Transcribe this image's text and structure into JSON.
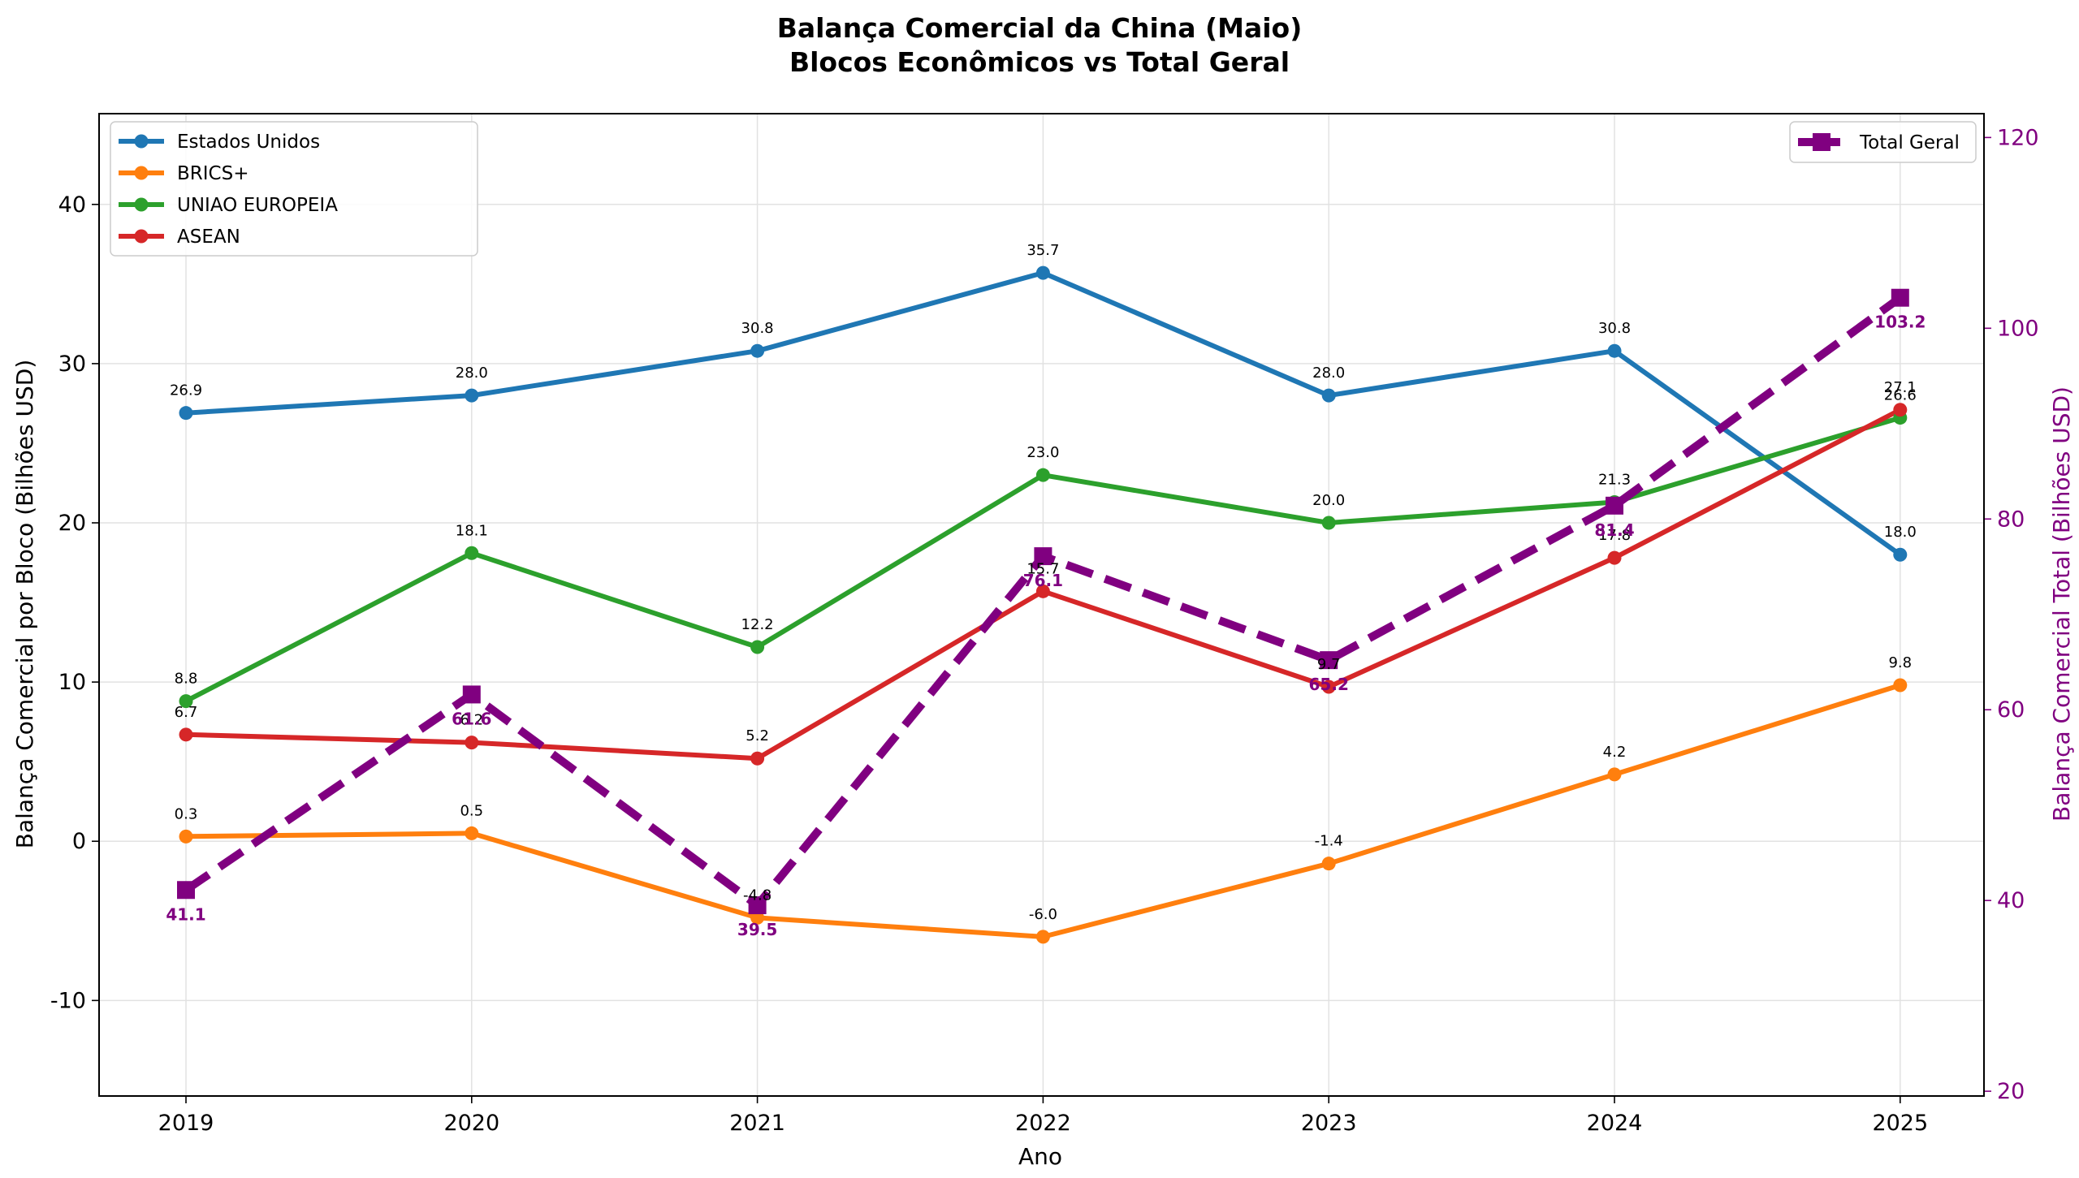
{
  "chart_data": {
    "type": "line",
    "title": "Balança Comercial da China (Maio)",
    "subtitle": "Blocos Econômicos vs Total Geral",
    "xlabel": "Ano",
    "ylabel": "Balança Comercial por Bloco (Bilhões USD)",
    "ylabel_right": "Balança Comercial Total (Bilhões USD)",
    "x": [
      "2019",
      "2020",
      "2021",
      "2022",
      "2023",
      "2024",
      "2025"
    ],
    "ylim": [
      -16,
      45.7
    ],
    "yticks": [
      -10,
      0,
      10,
      20,
      30,
      40
    ],
    "ylim_right": [
      19.5,
      122.5
    ],
    "yticks_right": [
      20,
      40,
      60,
      80,
      100,
      120
    ],
    "grid": true,
    "legend_left": "upper left",
    "legend_right": "upper right",
    "series": [
      {
        "name": "Estados Unidos",
        "color": "#1f77b4",
        "axis": "left",
        "values": [
          26.9,
          28.0,
          30.8,
          35.7,
          28.0,
          30.8,
          18.0
        ],
        "labels": [
          "26.9",
          "28.0",
          "30.8",
          "35.7",
          "28.0",
          "30.8",
          "18.0"
        ]
      },
      {
        "name": "BRICS+",
        "color": "#ff7f0e",
        "axis": "left",
        "values": [
          0.3,
          0.5,
          -4.8,
          -6.0,
          -1.4,
          4.2,
          9.8
        ],
        "labels": [
          "0.3",
          "0.5",
          "-4.8",
          "-6.0",
          "-1.4",
          "4.2",
          "9.8"
        ]
      },
      {
        "name": "UNIAO EUROPEIA",
        "color": "#2ca02c",
        "axis": "left",
        "values": [
          8.8,
          18.1,
          12.2,
          23.0,
          20.0,
          21.3,
          26.6
        ],
        "labels": [
          "8.8",
          "18.1",
          "12.2",
          "23.0",
          "20.0",
          "21.3",
          "26.6"
        ]
      },
      {
        "name": "ASEAN",
        "color": "#d62728",
        "axis": "left",
        "values": [
          6.7,
          6.2,
          5.2,
          15.7,
          9.7,
          17.8,
          27.1
        ],
        "labels": [
          "6.7",
          "6.2",
          "5.2",
          "15.7",
          "9.7",
          "17.8",
          "27.1"
        ]
      },
      {
        "name": "Total Geral",
        "color": "#800080",
        "axis": "right",
        "values": [
          41.1,
          61.6,
          39.5,
          76.1,
          65.2,
          81.4,
          103.2
        ],
        "labels": [
          "41.1",
          "61.6",
          "39.5",
          "76.1",
          "65.2",
          "81.4",
          "103.2"
        ]
      }
    ]
  }
}
